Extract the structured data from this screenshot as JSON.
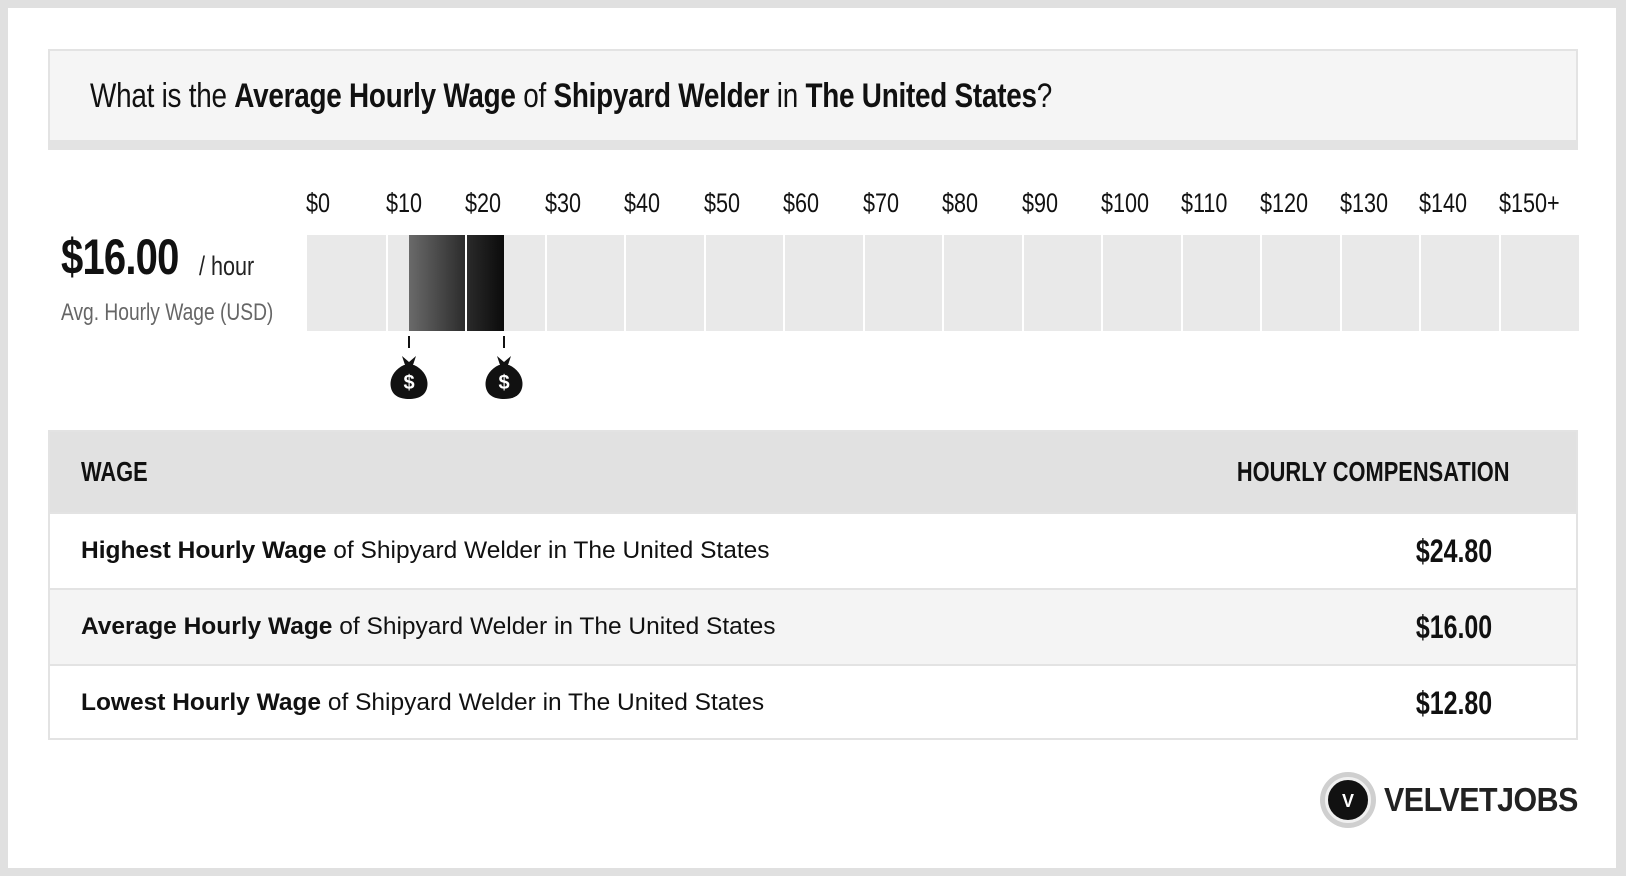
{
  "title": {
    "p1": "What is the ",
    "b1": "Average Hourly Wage",
    "p2": " of ",
    "b2": "Shipyard Welder",
    "p3": " in ",
    "b3": "The United States",
    "p4": "?"
  },
  "summary": {
    "value": "$16.00",
    "unit": "/ hour",
    "caption": "Avg. Hourly Wage (USD)"
  },
  "chart_data": {
    "type": "bar",
    "categories": [
      "$0",
      "$10",
      "$20",
      "$30",
      "$40",
      "$50",
      "$60",
      "$70",
      "$80",
      "$90",
      "$100",
      "$110",
      "$120",
      "$130",
      "$140",
      "$150+"
    ],
    "x_units": "USD per hour",
    "x_range": [
      0,
      150
    ],
    "range_low": 12.8,
    "range_avg": 16.0,
    "range_high": 24.8,
    "colors": {
      "track": "#e9e9e9",
      "range_light": "#6a6a6a",
      "range_dark": "#0b0b0b"
    }
  },
  "markers": [
    {
      "icon": "money-bag-icon",
      "value": 12.8
    },
    {
      "icon": "money-bag-icon",
      "value": 24.8
    }
  ],
  "table": {
    "header_left": "WAGE",
    "header_right": "HOURLY COMPENSATION",
    "rows": [
      {
        "bold": "Highest Hourly Wage",
        "rest": " of Shipyard Welder in The United States",
        "value": "$24.80"
      },
      {
        "bold": "Average Hourly Wage",
        "rest": " of Shipyard Welder in The United States",
        "value": "$16.00"
      },
      {
        "bold": "Lowest Hourly Wage",
        "rest": " of Shipyard Welder in The United States",
        "value": "$12.80"
      }
    ]
  },
  "logo": {
    "letter": "V",
    "text": "VELVETJOBS"
  }
}
